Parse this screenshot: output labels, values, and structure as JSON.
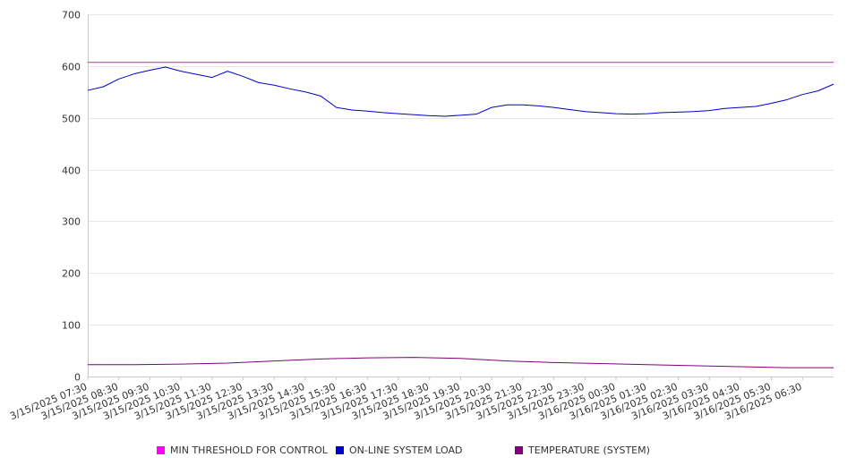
{
  "chart_data": {
    "type": "line",
    "ylim": [
      0,
      700
    ],
    "yticks": [
      0,
      100,
      200,
      300,
      400,
      500,
      600,
      700
    ],
    "grid": true,
    "legend_position": "bottom",
    "x_tick_labels": [
      "3/15/2025 07:30",
      "3/15/2025 08:30",
      "3/15/2025 09:30",
      "3/15/2025 10:30",
      "3/15/2025 11:30",
      "3/15/2025 12:30",
      "3/15/2025 13:30",
      "3/15/2025 14:30",
      "3/15/2025 15:30",
      "3/15/2025 16:30",
      "3/15/2025 17:30",
      "3/15/2025 18:30",
      "3/15/2025 19:30",
      "3/15/2025 20:30",
      "3/15/2025 21:30",
      "3/15/2025 22:30",
      "3/15/2025 23:30",
      "3/16/2025 00:30",
      "3/16/2025 01:30",
      "3/16/2025 02:30",
      "3/16/2025 03:30",
      "3/16/2025 04:30",
      "3/16/2025 05:30",
      "3/16/2025 06:30"
    ],
    "x_start": "3/15/2025 07:30",
    "x_end": "3/16/2025 07:30",
    "series": [
      {
        "name": "MIN THRESHOLD FOR CONTROL",
        "color": "#ff00ff",
        "x": [
          "3/15/2025 07:30",
          "3/16/2025 07:30"
        ],
        "values": [
          607,
          607
        ]
      },
      {
        "name": "ON-LINE SYSTEM LOAD",
        "color": "#0000cc",
        "x": [
          "3/15/2025 07:30",
          "3/15/2025 08:00",
          "3/15/2025 08:30",
          "3/15/2025 09:00",
          "3/15/2025 09:30",
          "3/15/2025 10:00",
          "3/15/2025 10:30",
          "3/15/2025 11:00",
          "3/15/2025 11:30",
          "3/15/2025 12:00",
          "3/15/2025 12:30",
          "3/15/2025 13:00",
          "3/15/2025 13:30",
          "3/15/2025 14:00",
          "3/15/2025 14:30",
          "3/15/2025 15:00",
          "3/15/2025 15:30",
          "3/15/2025 16:00",
          "3/15/2025 16:30",
          "3/15/2025 17:00",
          "3/15/2025 17:30",
          "3/15/2025 18:00",
          "3/15/2025 18:30",
          "3/15/2025 19:00",
          "3/15/2025 19:30",
          "3/15/2025 20:00",
          "3/15/2025 20:30",
          "3/15/2025 21:00",
          "3/15/2025 21:30",
          "3/15/2025 22:00",
          "3/15/2025 22:30",
          "3/15/2025 23:00",
          "3/15/2025 23:30",
          "3/16/2025 00:00",
          "3/16/2025 00:30",
          "3/16/2025 01:00",
          "3/16/2025 01:30",
          "3/16/2025 02:00",
          "3/16/2025 02:30",
          "3/16/2025 03:00",
          "3/16/2025 03:30",
          "3/16/2025 04:00",
          "3/16/2025 04:30",
          "3/16/2025 05:00",
          "3/16/2025 05:30",
          "3/16/2025 06:00",
          "3/16/2025 06:30",
          "3/16/2025 07:00",
          "3/16/2025 07:30"
        ],
        "values": [
          553,
          560,
          575,
          585,
          592,
          598,
          590,
          584,
          578,
          590,
          580,
          568,
          563,
          556,
          550,
          542,
          520,
          515,
          513,
          510,
          508,
          506,
          504,
          503,
          505,
          507,
          520,
          525,
          525,
          523,
          520,
          516,
          512,
          510,
          508,
          507,
          508,
          510,
          511,
          512,
          514,
          518,
          520,
          522,
          528,
          535,
          545,
          552,
          565
        ]
      },
      {
        "name": "TEMPERATURE (SYSTEM)",
        "color": "#800080",
        "x": [
          "3/15/2025 07:30",
          "3/15/2025 09:00",
          "3/15/2025 10:30",
          "3/15/2025 12:00",
          "3/15/2025 13:30",
          "3/15/2025 15:00",
          "3/15/2025 16:30",
          "3/15/2025 18:00",
          "3/15/2025 19:30",
          "3/15/2025 21:00",
          "3/15/2025 22:30",
          "3/16/2025 00:00",
          "3/16/2025 01:30",
          "3/16/2025 03:00",
          "3/16/2025 04:30",
          "3/16/2025 06:00",
          "3/16/2025 07:30"
        ],
        "values": [
          23,
          23,
          24,
          26,
          30,
          34,
          36,
          37,
          35,
          30,
          27,
          25,
          23,
          21,
          19,
          17,
          17
        ]
      }
    ]
  }
}
